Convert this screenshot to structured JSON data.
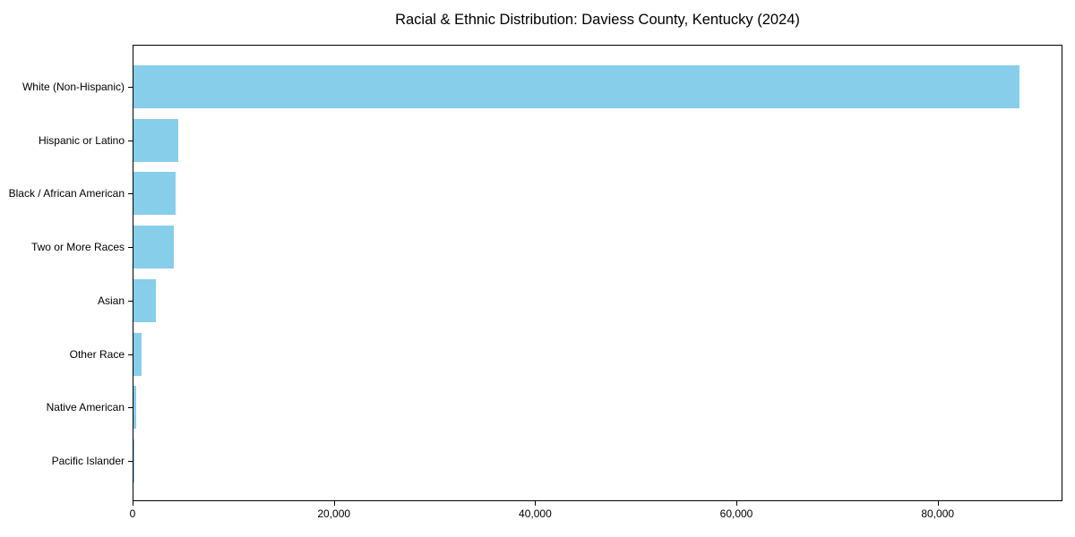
{
  "chart_data": {
    "type": "bar",
    "orientation": "horizontal",
    "title": "Racial & Ethnic Distribution: Daviess County, Kentucky (2024)",
    "categories": [
      "White (Non-Hispanic)",
      "Hispanic or Latino",
      "Black / African American",
      "Two or More Races",
      "Asian",
      "Other Race",
      "Native American",
      "Pacific Islander"
    ],
    "values": [
      88000,
      4450,
      4200,
      4000,
      2200,
      800,
      250,
      60
    ],
    "xlabel": "",
    "ylabel": "",
    "xlim": [
      0,
      92400
    ],
    "x_tick_values": [
      0,
      20000,
      40000,
      60000,
      80000
    ],
    "x_tick_labels": [
      "0",
      "20,000",
      "40,000",
      "60,000",
      "80,000"
    ],
    "bar_color": "#87CEEB",
    "axis_color": "#000000",
    "text_color": "#000000",
    "background_color": "#ffffff",
    "grid": false,
    "legend": null
  }
}
